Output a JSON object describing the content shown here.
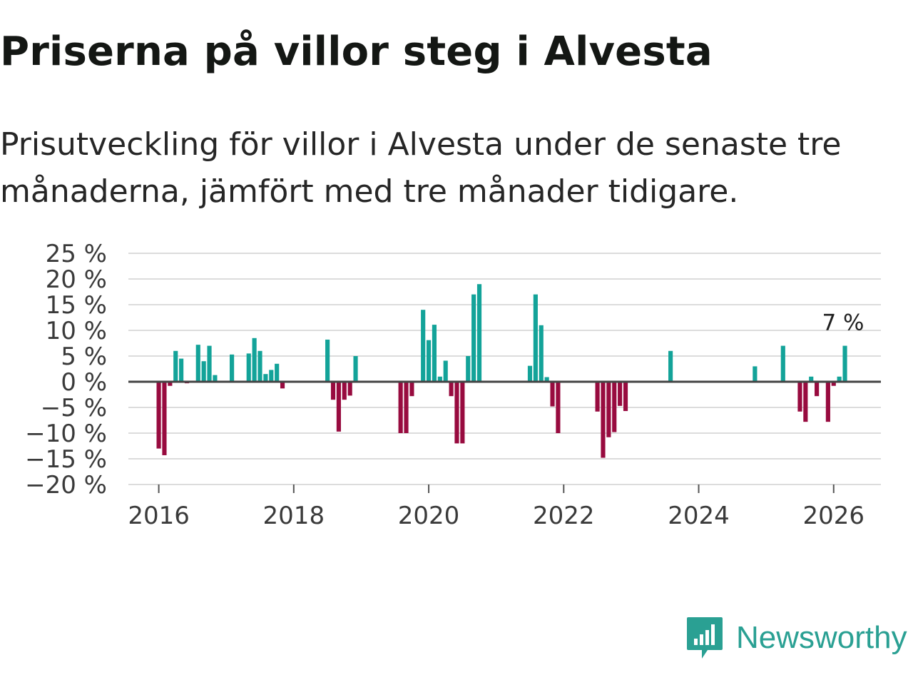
{
  "title": "Priserna på villor steg i Alvesta",
  "subtitle": "Prisutveckling för villor i Alvesta under de senaste tre månaderna, jämfört med tre månader tidigare.",
  "brand": {
    "name": "Newsworthy",
    "icon": "newsworthy-logo-icon"
  },
  "colors": {
    "positive": "#13a399",
    "negative": "#980b3f",
    "grid": "#dcdcdc",
    "zero_line": "#444444",
    "brand": "#2aa093"
  },
  "chart_data": {
    "type": "bar",
    "title": "Priserna på villor steg i Alvesta",
    "xlabel": "",
    "ylabel": "",
    "ylim": [
      -20,
      25
    ],
    "xlim": [
      2015.55,
      2026.7
    ],
    "grid": true,
    "y_ticks": [
      25,
      20,
      15,
      10,
      5,
      0,
      -5,
      -10,
      -15,
      -20
    ],
    "y_tick_labels": [
      "25 %",
      "20 %",
      "15 %",
      "10 %",
      "5 %",
      "0 %",
      "−5 %",
      "−10 %",
      "−15 %",
      "−20 %"
    ],
    "x_ticks": [
      2016,
      2018,
      2020,
      2022,
      2024,
      2026
    ],
    "x_tick_labels": [
      "2016",
      "2018",
      "2020",
      "2022",
      "2024",
      "2026"
    ],
    "last_value_label": "7 %",
    "series": [
      {
        "name": "Prisutveckling",
        "points": [
          {
            "date": "2016-01",
            "value": -13
          },
          {
            "date": "2016-02",
            "value": -14.3
          },
          {
            "date": "2016-03",
            "value": -0.8
          },
          {
            "date": "2016-04",
            "value": 6
          },
          {
            "date": "2016-05",
            "value": 4.5
          },
          {
            "date": "2016-06",
            "value": -0.3
          },
          {
            "date": "2016-08",
            "value": 7.2
          },
          {
            "date": "2016-09",
            "value": 4
          },
          {
            "date": "2016-10",
            "value": 7
          },
          {
            "date": "2016-11",
            "value": 1.3
          },
          {
            "date": "2017-02",
            "value": 5.3
          },
          {
            "date": "2017-05",
            "value": 5.5
          },
          {
            "date": "2017-06",
            "value": 8.5
          },
          {
            "date": "2017-07",
            "value": 6
          },
          {
            "date": "2017-08",
            "value": 1.5
          },
          {
            "date": "2017-09",
            "value": 2.3
          },
          {
            "date": "2017-10",
            "value": 3.5
          },
          {
            "date": "2017-11",
            "value": -1.3
          },
          {
            "date": "2018-07",
            "value": 8.2
          },
          {
            "date": "2018-08",
            "value": -3.5
          },
          {
            "date": "2018-09",
            "value": -9.7
          },
          {
            "date": "2018-10",
            "value": -3.5
          },
          {
            "date": "2018-11",
            "value": -2.7
          },
          {
            "date": "2018-12",
            "value": 5
          },
          {
            "date": "2019-08",
            "value": -10
          },
          {
            "date": "2019-09",
            "value": -10
          },
          {
            "date": "2019-10",
            "value": -2.8
          },
          {
            "date": "2019-12",
            "value": 14
          },
          {
            "date": "2020-01",
            "value": 8.1
          },
          {
            "date": "2020-02",
            "value": 11.1
          },
          {
            "date": "2020-03",
            "value": 1
          },
          {
            "date": "2020-04",
            "value": 4.1
          },
          {
            "date": "2020-05",
            "value": -2.8
          },
          {
            "date": "2020-06",
            "value": -12
          },
          {
            "date": "2020-07",
            "value": -12
          },
          {
            "date": "2020-08",
            "value": 5
          },
          {
            "date": "2020-09",
            "value": 17
          },
          {
            "date": "2020-10",
            "value": 19
          },
          {
            "date": "2021-07",
            "value": 3.1
          },
          {
            "date": "2021-08",
            "value": 17
          },
          {
            "date": "2021-09",
            "value": 11
          },
          {
            "date": "2021-10",
            "value": 0.9
          },
          {
            "date": "2021-11",
            "value": -4.8
          },
          {
            "date": "2021-12",
            "value": -10
          },
          {
            "date": "2022-07",
            "value": -5.8
          },
          {
            "date": "2022-08",
            "value": -14.8
          },
          {
            "date": "2022-09",
            "value": -10.8
          },
          {
            "date": "2022-10",
            "value": -9.8
          },
          {
            "date": "2022-11",
            "value": -4.7
          },
          {
            "date": "2022-12",
            "value": -5.7
          },
          {
            "date": "2023-08",
            "value": 6
          },
          {
            "date": "2024-11",
            "value": 3
          },
          {
            "date": "2025-04",
            "value": 7
          },
          {
            "date": "2025-07",
            "value": -5.8
          },
          {
            "date": "2025-08",
            "value": -7.8
          },
          {
            "date": "2025-09",
            "value": 1
          },
          {
            "date": "2025-10",
            "value": -2.8
          },
          {
            "date": "2025-12",
            "value": -7.8
          },
          {
            "date": "2026-01",
            "value": -0.8
          },
          {
            "date": "2026-02",
            "value": 1
          },
          {
            "date": "2026-03",
            "value": 7
          }
        ]
      }
    ]
  }
}
